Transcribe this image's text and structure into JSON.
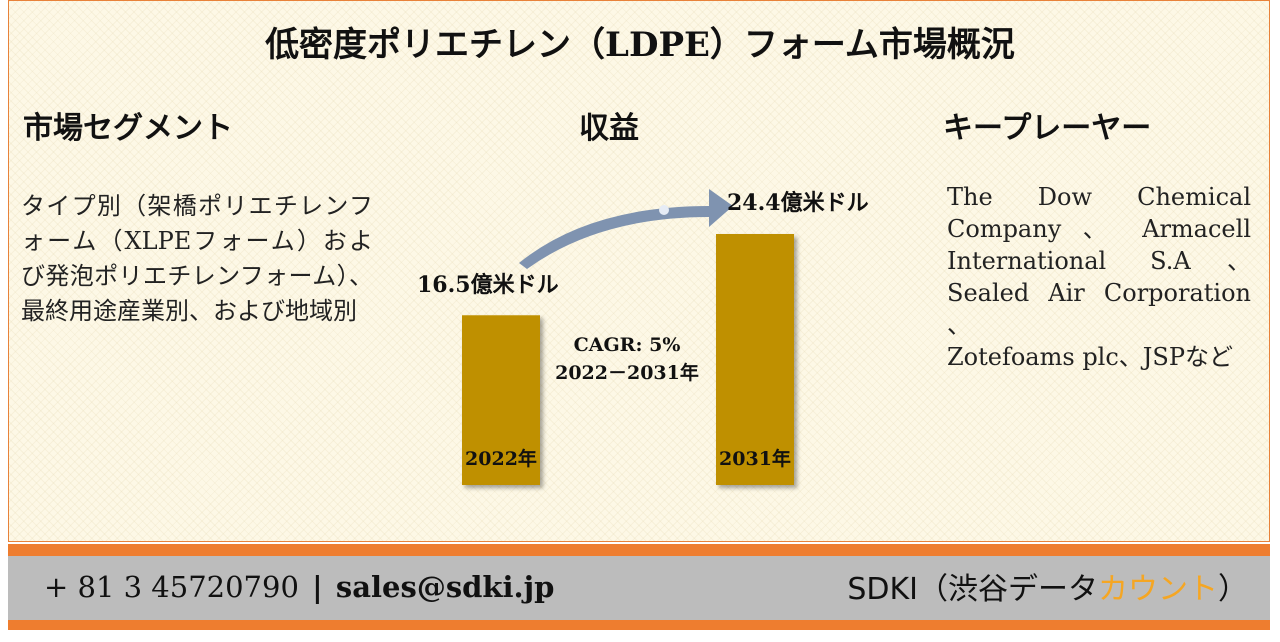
{
  "title": "低密度ポリエチレン（LDPE）フォーム市場概況",
  "segments": {
    "heading": "市場セグメント",
    "text": "タイプ別（架橋ポリエチレンフォーム（XLPEフォーム）および発泡ポリエチレンフォーム）、最終用途産業別、および地域別"
  },
  "revenue": {
    "heading": "収益"
  },
  "players": {
    "heading": "キープレーヤー",
    "text_main": "The Dow Chemical Company 、 Armacell International S.A、Sealed Air Corporation 、",
    "text_last": "Zotefoams plc、JSPなど"
  },
  "chart_data": {
    "type": "bar",
    "categories": [
      "2022年",
      "2031年"
    ],
    "values": [
      16.5,
      24.4
    ],
    "value_labels": [
      "16.5億米ドル",
      "24.4億米ドル"
    ],
    "unit": "億米ドル",
    "annotation": {
      "cagr": "CAGR: 5%",
      "period": "2022－2031年"
    },
    "bar_color": "#bf9000",
    "arrow_color": "#7f93b0"
  },
  "footer": {
    "phone": "+ 81 3 45720790",
    "separator": "|",
    "email": "sales@sdki.jp",
    "brand_main": "SDKI（渋谷データ",
    "brand_accent": "カウント",
    "brand_close": "）"
  },
  "colors": {
    "orange": "#ee7d2f",
    "footer_bg": "#bcbcbc",
    "accent": "#f5a623"
  }
}
